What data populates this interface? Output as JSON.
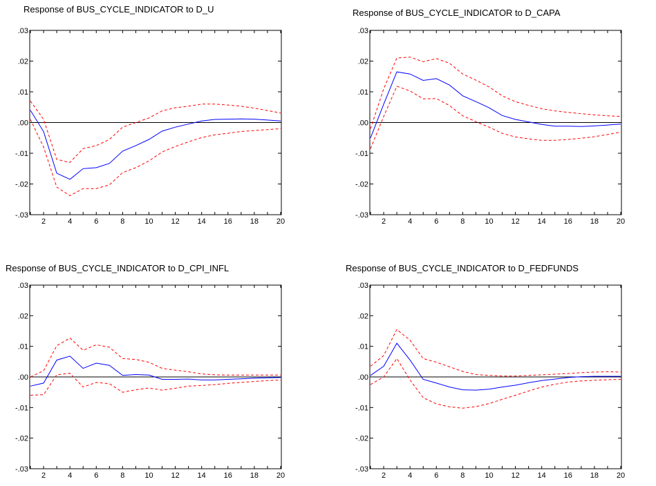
{
  "chart_data": [
    {
      "type": "line",
      "title": "Response of BUS_CYCLE_INDICATOR to D_U",
      "x": [
        1,
        2,
        3,
        4,
        5,
        6,
        7,
        8,
        9,
        10,
        11,
        12,
        13,
        14,
        15,
        16,
        17,
        18,
        19,
        20
      ],
      "xticks": [
        "2",
        "4",
        "6",
        "8",
        "10",
        "12",
        "14",
        "16",
        "18",
        "20"
      ],
      "yticks": [
        ".03",
        ".02",
        ".01",
        ".00",
        "-.01",
        "-.02",
        "-.03"
      ],
      "ylim": [
        -0.03,
        0.03
      ],
      "series": [
        {
          "role": "response",
          "color": "#0000ff",
          "dash": "solid",
          "values": [
            0.004,
            -0.003,
            -0.0165,
            -0.0185,
            -0.015,
            -0.0147,
            -0.0133,
            -0.0093,
            -0.0075,
            -0.0055,
            -0.0028,
            -0.0015,
            -0.0005,
            0.0005,
            0.001,
            0.0011,
            0.0012,
            0.0011,
            0.0008,
            0.0005
          ]
        },
        {
          "role": "upper",
          "color": "#ff0000",
          "dash": "dashed",
          "values": [
            0.007,
            0.001,
            -0.012,
            -0.013,
            -0.0085,
            -0.0075,
            -0.0055,
            -0.0015,
            0.0,
            0.0015,
            0.0038,
            0.0048,
            0.0053,
            0.006,
            0.006,
            0.0057,
            0.0053,
            0.0047,
            0.0039,
            0.0031
          ]
        },
        {
          "role": "lower",
          "color": "#ff0000",
          "dash": "dashed",
          "values": [
            0.001,
            -0.008,
            -0.021,
            -0.0238,
            -0.0215,
            -0.0215,
            -0.0203,
            -0.0163,
            -0.0147,
            -0.0125,
            -0.0096,
            -0.0078,
            -0.0063,
            -0.0049,
            -0.004,
            -0.0035,
            -0.0029,
            -0.0026,
            -0.0023,
            -0.002
          ]
        }
      ]
    },
    {
      "type": "line",
      "title": "Response of BUS_CYCLE_INDICATOR to D_CAPA",
      "x": [
        1,
        2,
        3,
        4,
        5,
        6,
        7,
        8,
        9,
        10,
        11,
        12,
        13,
        14,
        15,
        16,
        17,
        18,
        19,
        20
      ],
      "xticks": [
        "2",
        "4",
        "6",
        "8",
        "10",
        "12",
        "14",
        "16",
        "18",
        "20"
      ],
      "yticks": [
        ".03",
        ".02",
        ".01",
        ".00",
        "-.01",
        "-.02",
        "-.03"
      ],
      "ylim": [
        -0.03,
        0.03
      ],
      "series": [
        {
          "role": "response",
          "color": "#0000ff",
          "dash": "solid",
          "values": [
            -0.005,
            0.006,
            0.0165,
            0.0158,
            0.0137,
            0.0143,
            0.0122,
            0.0087,
            0.0068,
            0.0048,
            0.0023,
            0.001,
            0.0002,
            -0.0006,
            -0.0012,
            -0.0012,
            -0.0013,
            -0.0011,
            -0.0008,
            -0.0005
          ]
        },
        {
          "role": "upper",
          "color": "#ff0000",
          "dash": "dashed",
          "values": [
            -0.002,
            0.011,
            0.021,
            0.0213,
            0.0198,
            0.0208,
            0.0193,
            0.0158,
            0.0138,
            0.0116,
            0.0087,
            0.0068,
            0.0056,
            0.0045,
            0.0038,
            0.0033,
            0.0029,
            0.0025,
            0.0022,
            0.002
          ]
        },
        {
          "role": "lower",
          "color": "#ff0000",
          "dash": "dashed",
          "values": [
            -0.0085,
            0.002,
            0.0118,
            0.0103,
            0.0077,
            0.0078,
            0.0055,
            0.0022,
            0.0003,
            -0.0015,
            -0.0035,
            -0.0047,
            -0.0053,
            -0.0058,
            -0.0058,
            -0.0055,
            -0.0051,
            -0.0046,
            -0.0039,
            -0.0031
          ]
        }
      ]
    },
    {
      "type": "line",
      "title": "Response of BUS_CYCLE_INDICATOR to D_CPI_INFL",
      "x": [
        1,
        2,
        3,
        4,
        5,
        6,
        7,
        8,
        9,
        10,
        11,
        12,
        13,
        14,
        15,
        16,
        17,
        18,
        19,
        20
      ],
      "xticks": [
        "2",
        "4",
        "6",
        "8",
        "10",
        "12",
        "14",
        "16",
        "18",
        "20"
      ],
      "yticks": [
        ".03",
        ".02",
        ".01",
        ".00",
        "-.01",
        "-.02",
        "-.03"
      ],
      "ylim": [
        -0.03,
        0.03
      ],
      "series": [
        {
          "role": "response",
          "color": "#0000ff",
          "dash": "solid",
          "values": [
            -0.003,
            -0.002,
            0.0055,
            0.0068,
            0.0028,
            0.0045,
            0.0038,
            0.0005,
            0.0008,
            0.0006,
            -0.0008,
            -0.0008,
            -0.0007,
            -0.001,
            -0.001,
            -0.0008,
            -0.0006,
            -0.0004,
            -0.0003,
            -0.0002
          ]
        },
        {
          "role": "upper",
          "color": "#ff0000",
          "dash": "dashed",
          "values": [
            0.0,
            0.002,
            0.0102,
            0.0127,
            0.0087,
            0.0105,
            0.0097,
            0.006,
            0.0057,
            0.0048,
            0.0028,
            0.0022,
            0.0017,
            0.001,
            0.0007,
            0.0006,
            0.0006,
            0.0006,
            0.0006,
            0.0006
          ]
        },
        {
          "role": "lower",
          "color": "#ff0000",
          "dash": "dashed",
          "values": [
            -0.006,
            -0.0058,
            0.0007,
            0.0012,
            -0.0033,
            -0.0018,
            -0.0022,
            -0.005,
            -0.0042,
            -0.0036,
            -0.0043,
            -0.0037,
            -0.003,
            -0.0028,
            -0.0025,
            -0.0021,
            -0.0018,
            -0.0015,
            -0.0012,
            -0.001
          ]
        }
      ]
    },
    {
      "type": "line",
      "title": "Response of BUS_CYCLE_INDICATOR to D_FEDFUNDS",
      "x": [
        1,
        2,
        3,
        4,
        5,
        6,
        7,
        8,
        9,
        10,
        11,
        12,
        13,
        14,
        15,
        16,
        17,
        18,
        19,
        20
      ],
      "xticks": [
        "2",
        "4",
        "6",
        "8",
        "10",
        "12",
        "14",
        "16",
        "18",
        "20"
      ],
      "yticks": [
        ".03",
        ".02",
        ".01",
        ".00",
        "-.01",
        "-.02",
        "-.03"
      ],
      "ylim": [
        -0.03,
        0.03
      ],
      "series": [
        {
          "role": "response",
          "color": "#0000ff",
          "dash": "solid",
          "values": [
            0.0005,
            0.0035,
            0.011,
            0.0055,
            -0.0008,
            -0.002,
            -0.0033,
            -0.0042,
            -0.0043,
            -0.004,
            -0.0033,
            -0.0027,
            -0.0019,
            -0.0012,
            -0.0007,
            -0.0002,
            0.0001,
            0.0002,
            0.0002,
            0.0002
          ]
        },
        {
          "role": "upper",
          "color": "#ff0000",
          "dash": "dashed",
          "values": [
            0.0035,
            0.007,
            0.0155,
            0.012,
            0.006,
            0.0048,
            0.0033,
            0.0018,
            0.0008,
            0.0005,
            0.0003,
            0.0003,
            0.0005,
            0.0007,
            0.0009,
            0.0011,
            0.0014,
            0.0016,
            0.0017,
            0.0016
          ]
        },
        {
          "role": "lower",
          "color": "#ff0000",
          "dash": "dashed",
          "values": [
            -0.0025,
            0.0,
            0.006,
            -0.001,
            -0.0068,
            -0.0088,
            -0.0098,
            -0.0102,
            -0.0097,
            -0.0087,
            -0.0073,
            -0.006,
            -0.0046,
            -0.0033,
            -0.0024,
            -0.0017,
            -0.0013,
            -0.0011,
            -0.0009,
            -0.0008
          ]
        }
      ]
    }
  ]
}
